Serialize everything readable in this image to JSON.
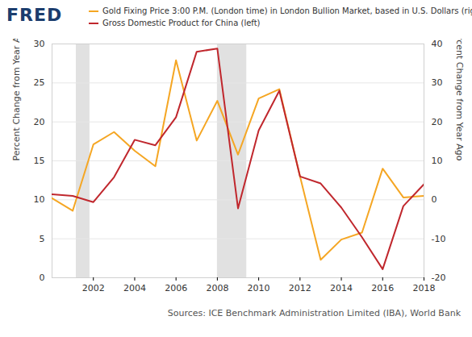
{
  "chart_data": {
    "type": "line",
    "logo": "FRED",
    "caption": "Sources: ICE Benchmark Administration Limited (IBA), World Bank",
    "ylabel": "Percent Change from Year Ago",
    "y2label": "Percent Change from Year Ago",
    "x": [
      2000,
      2001,
      2002,
      2003,
      2004,
      2005,
      2006,
      2007,
      2008,
      2009,
      2010,
      2011,
      2012,
      2013,
      2014,
      2015,
      2016,
      2017,
      2018
    ],
    "xlim": [
      2000,
      2018
    ],
    "xticks": [
      2002,
      2004,
      2006,
      2008,
      2010,
      2012,
      2014,
      2016,
      2018
    ],
    "ylim": [
      0,
      30
    ],
    "yticks": [
      0,
      5,
      10,
      15,
      20,
      25,
      30
    ],
    "y2lim": [
      -20,
      40
    ],
    "y2ticks": [
      -20,
      -10,
      0,
      10,
      20,
      30,
      40
    ],
    "grid": true,
    "legend": "top",
    "recessions": [
      {
        "start": 2001.17,
        "end": 2001.83
      },
      {
        "start": 2008.0,
        "end": 2009.42
      }
    ],
    "series": [
      {
        "name": "Gold Fixing Price 3:00 P.M. (London time) in London Bullion Market, based in U.S. Dollars (right)",
        "color": "#f5a623",
        "axis": "y2",
        "values": [
          0.4,
          -2.8,
          14.2,
          17.4,
          12.6,
          8.6,
          35.8,
          15.2,
          25.4,
          11.6,
          26.0,
          28.4,
          6.0,
          -15.4,
          -10.2,
          -8.4,
          8.0,
          0.6,
          1.0
        ]
      },
      {
        "name": "Gross Domestic Product for China (left)",
        "color": "#c0272d",
        "values": [
          10.7,
          10.5,
          9.7,
          12.9,
          17.7,
          17.0,
          20.6,
          29.0,
          29.4,
          8.9,
          18.9,
          24.0,
          13.0,
          12.1,
          9.0,
          5.2,
          1.1,
          9.2,
          12.0
        ]
      }
    ]
  }
}
